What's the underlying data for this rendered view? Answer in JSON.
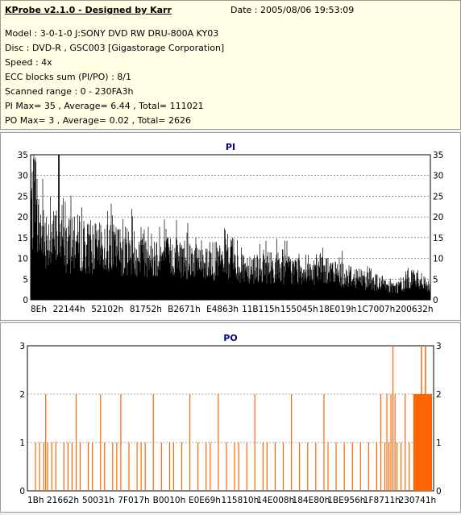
{
  "header": {
    "title": "KProbe v2.1.0 - Designed by Karr",
    "date": "Date : 2005/08/06 19:53:09",
    "lines": [
      "Model : 3-0-1-0 J:SONY    DVD RW DRU-800A  KY03",
      "Disc : DVD-R , GSC003 [Gigastorage Corporation]",
      "Speed : 4x",
      "ECC blocks sum (PI/PO) : 8/1",
      "Scanned range : 0 - 230FA3h",
      "PI Max= 35 , Average= 6.44 , Total= 111021",
      "PO Max= 3 , Average= 0.02 , Total= 2626"
    ]
  },
  "colors": {
    "pi": "#000000",
    "po": "#ff6600",
    "title": "#000080",
    "grid": "#505050"
  },
  "chart_data": [
    {
      "type": "bar",
      "title": "PI",
      "ylim": [
        0,
        35
      ],
      "yticks": [
        0,
        5,
        10,
        15,
        20,
        25,
        30,
        35
      ],
      "xtick_labels": [
        "8Eh",
        "22144h",
        "52102h",
        "81752h",
        "B2671h",
        "E4863h",
        "11B115h",
        "155045h",
        "18E019h",
        "1C7007h",
        "200632h"
      ],
      "profile": [
        [
          0,
          33
        ],
        [
          1,
          26
        ],
        [
          3,
          22
        ],
        [
          6,
          20
        ],
        [
          8,
          18
        ],
        [
          10,
          18
        ],
        [
          12,
          19
        ],
        [
          15,
          17
        ],
        [
          20,
          17
        ],
        [
          25,
          16
        ],
        [
          30,
          15
        ],
        [
          35,
          14
        ],
        [
          40,
          14
        ],
        [
          45,
          13
        ],
        [
          50,
          12
        ],
        [
          55,
          11
        ],
        [
          60,
          11
        ],
        [
          65,
          10
        ],
        [
          70,
          10
        ],
        [
          75,
          9
        ],
        [
          80,
          8
        ],
        [
          83,
          7
        ],
        [
          86,
          6
        ],
        [
          89,
          5
        ],
        [
          91,
          4
        ],
        [
          93,
          5
        ],
        [
          95,
          8
        ],
        [
          97,
          6
        ],
        [
          100,
          4
        ]
      ],
      "peak": {
        "position_percent": 7,
        "value": 35
      }
    },
    {
      "type": "bar",
      "title": "PO",
      "ylim": [
        0,
        3
      ],
      "yticks": [
        0,
        1,
        2,
        3
      ],
      "xtick_labels": [
        "1Bh",
        "21662h",
        "50031h",
        "7F017h",
        "B0010h",
        "E0E69h",
        "115810h",
        "14E008h",
        "184E80h",
        "1BE956h",
        "1F8711h",
        "230741h"
      ],
      "spikes": [
        [
          2,
          1
        ],
        [
          3,
          1
        ],
        [
          4,
          1
        ],
        [
          4.5,
          2
        ],
        [
          5,
          1
        ],
        [
          6,
          1
        ],
        [
          7,
          1
        ],
        [
          9,
          1
        ],
        [
          10,
          1
        ],
        [
          11,
          1
        ],
        [
          12,
          2
        ],
        [
          13,
          1
        ],
        [
          15,
          1
        ],
        [
          16,
          1
        ],
        [
          18,
          2
        ],
        [
          19,
          1
        ],
        [
          21,
          1
        ],
        [
          22,
          1
        ],
        [
          23,
          2
        ],
        [
          25,
          1
        ],
        [
          27,
          1
        ],
        [
          28,
          1
        ],
        [
          29,
          1
        ],
        [
          31,
          2
        ],
        [
          33,
          1
        ],
        [
          35,
          1
        ],
        [
          36,
          1
        ],
        [
          38,
          1
        ],
        [
          40,
          2
        ],
        [
          42,
          1
        ],
        [
          44,
          1
        ],
        [
          45,
          1
        ],
        [
          47,
          2
        ],
        [
          49,
          1
        ],
        [
          51,
          1
        ],
        [
          52,
          1
        ],
        [
          54,
          1
        ],
        [
          56,
          2
        ],
        [
          58,
          1
        ],
        [
          59,
          1
        ],
        [
          61,
          1
        ],
        [
          63,
          1
        ],
        [
          65,
          2
        ],
        [
          67,
          1
        ],
        [
          69,
          1
        ],
        [
          71,
          1
        ],
        [
          73,
          2
        ],
        [
          74,
          1
        ],
        [
          76,
          1
        ],
        [
          78,
          1
        ],
        [
          80,
          1
        ],
        [
          82,
          1
        ],
        [
          84,
          1
        ],
        [
          86,
          1
        ],
        [
          87,
          2
        ],
        [
          88,
          1
        ],
        [
          88.5,
          2
        ],
        [
          89,
          1
        ],
        [
          89.5,
          2
        ],
        [
          90,
          3
        ],
        [
          90.5,
          2
        ],
        [
          91,
          1
        ],
        [
          92,
          1
        ],
        [
          93,
          2
        ],
        [
          94,
          1
        ]
      ],
      "dense_block": {
        "from_percent": 95,
        "to_percent": 100,
        "value": 2,
        "peaks_at_3": [
          97,
          98
        ]
      }
    }
  ]
}
